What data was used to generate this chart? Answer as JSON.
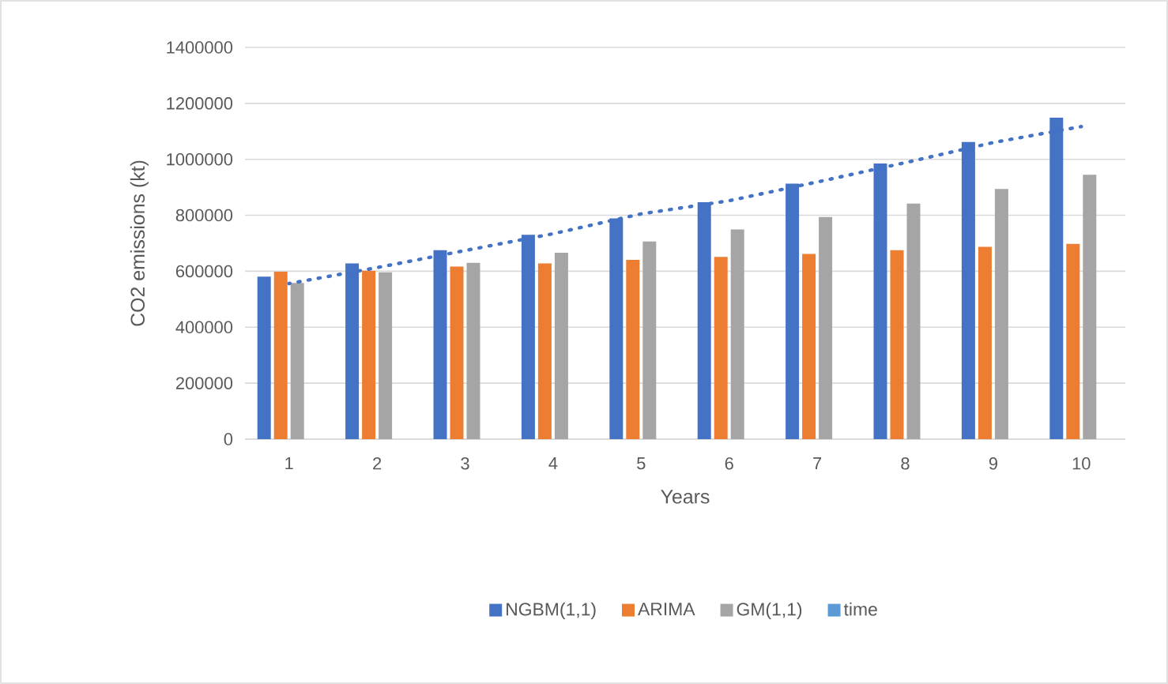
{
  "chart_data": {
    "type": "bar",
    "xlabel": "Years",
    "ylabel": "CO2 emissions (kt)",
    "categories": [
      "1",
      "2",
      "3",
      "4",
      "5",
      "6",
      "7",
      "8",
      "9",
      "10"
    ],
    "series": [
      {
        "name": "NGBM(1,1)",
        "color": "#4472c4",
        "values": [
          581000,
          628000,
          675000,
          730000,
          789000,
          847000,
          913000,
          985000,
          1062000,
          1149000
        ]
      },
      {
        "name": "ARIMA",
        "color": "#ed7d31",
        "values": [
          598000,
          602000,
          617000,
          628000,
          641000,
          651000,
          662000,
          675000,
          687000,
          698000
        ]
      },
      {
        "name": "GM(1,1)",
        "color": "#a5a5a5",
        "values": [
          558000,
          596000,
          630000,
          666000,
          706000,
          749000,
          794000,
          842000,
          894000,
          945000
        ]
      },
      {
        "name": "time",
        "color": "#5b9bd5",
        "values": [
          null,
          null,
          null,
          null,
          null,
          null,
          null,
          null,
          null,
          null
        ]
      },
      {
        "type": "line",
        "line_style": "dotted",
        "color": "#4472c4",
        "values": [
          556000,
          613000,
          674000,
          734000,
          805000,
          852000,
          919000,
          988000,
          1060000,
          1117000
        ]
      }
    ],
    "ylim": [
      0,
      1400000
    ],
    "yticks": [
      0,
      200000,
      400000,
      600000,
      800000,
      1000000,
      1200000,
      1400000
    ],
    "grid": "y",
    "legend": "bottom"
  }
}
